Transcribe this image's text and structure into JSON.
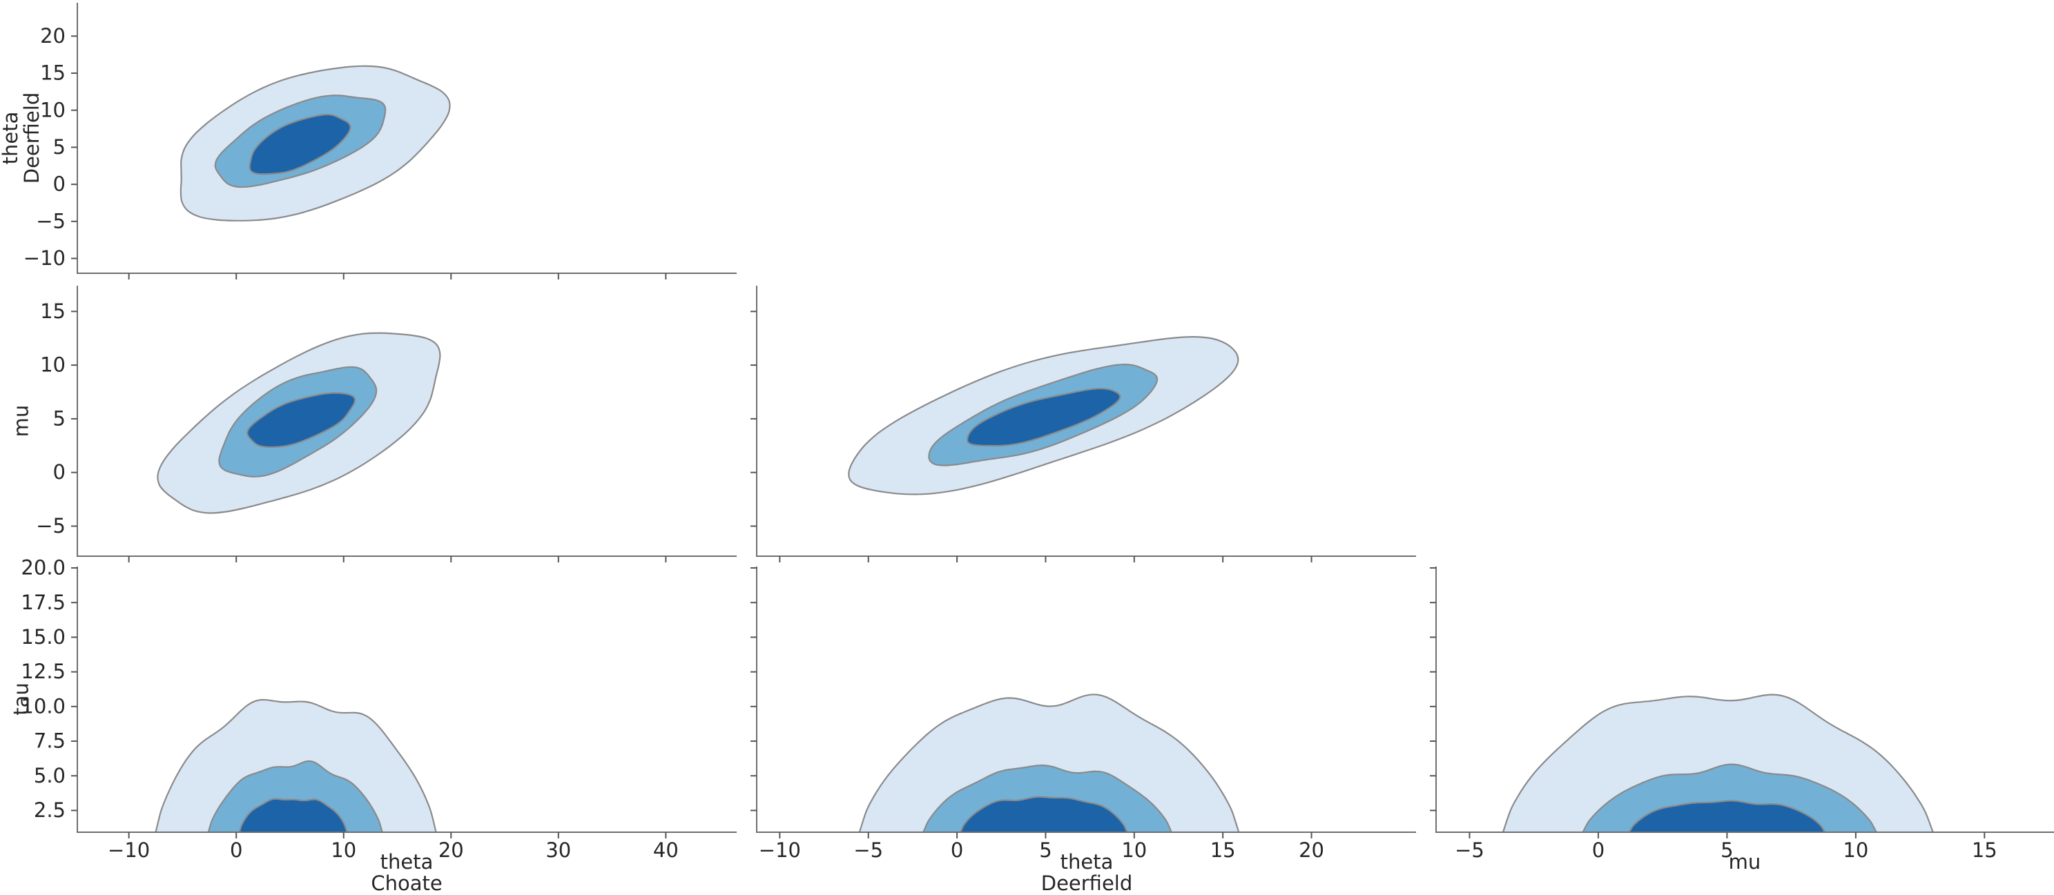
{
  "figure": {
    "background": "#ffffff",
    "text_color": "#262626",
    "spine_color": "#6e6e6e",
    "tick_color": "#555555"
  },
  "chart_data": {
    "type": "kde_pair_plot",
    "layout": "lower-triangular 3x3 grid of 2D KDE contour plots",
    "grid_on": false,
    "legend": null,
    "title": "",
    "contour_levels": {
      "fills": [
        "#d9e7f5",
        "#73b0d5",
        "#1c63a8"
      ],
      "stroke": "#8a8a8a",
      "order": [
        "outer",
        "middle",
        "inner"
      ]
    },
    "cols": [
      {
        "x_label_lines": [
          "theta",
          "Choate"
        ],
        "x_range": [
          -14.8,
          46.6
        ],
        "x_tick_values": [
          -10,
          0,
          10,
          20,
          30,
          40
        ],
        "x_tick_labels": [
          "−10",
          "0",
          "10",
          "20",
          "30",
          "40"
        ]
      },
      {
        "x_label_lines": [
          "theta",
          "Deerfield"
        ],
        "x_range": [
          -11.3,
          25.9
        ],
        "x_tick_values": [
          -10,
          -5,
          0,
          5,
          10,
          15,
          20
        ],
        "x_tick_labels": [
          "−10",
          "−5",
          "0",
          "5",
          "10",
          "15",
          "20"
        ]
      },
      {
        "x_label_lines": [
          "mu"
        ],
        "x_range": [
          -6.3,
          17.7
        ],
        "x_tick_values": [
          -5,
          0,
          5,
          10,
          15
        ],
        "x_tick_labels": [
          "−5",
          "0",
          "5",
          "10",
          "15"
        ]
      }
    ],
    "rows": [
      {
        "y_label_lines": [
          "theta",
          "Deerfield"
        ],
        "y_range": [
          -12.0,
          24.5
        ],
        "y_tick_values": [
          20,
          15,
          10,
          5,
          0,
          -5,
          -10
        ],
        "y_tick_labels": [
          "20",
          "15",
          "10",
          "5",
          "0",
          "−5",
          "−10"
        ]
      },
      {
        "y_label_lines": [
          "mu"
        ],
        "y_range": [
          -7.8,
          17.4
        ],
        "y_tick_values": [
          15,
          10,
          5,
          0,
          -5
        ],
        "y_tick_labels": [
          "15",
          "10",
          "5",
          "0",
          "−5"
        ]
      },
      {
        "y_label_lines": [
          "tau"
        ],
        "y_range": [
          0.93,
          20.1
        ],
        "y_tick_values": [
          20,
          17.5,
          15,
          12.5,
          10,
          7.5,
          5,
          2.5
        ],
        "y_tick_labels": [
          "20.0",
          "17.5",
          "15.0",
          "12.5",
          "10.0",
          "7.5",
          "5.0",
          "2.5"
        ]
      }
    ],
    "panels": [
      {
        "row": 0,
        "col": 0,
        "x_var": "theta Choate",
        "y_var": "theta Deerfield",
        "contours": [
          {
            "shape": "blob",
            "level": "outer",
            "center": [
              6.7,
              5.6
            ],
            "a": 14.0,
            "b": 8.3,
            "angle": 34,
            "wobble": 0.055,
            "seed": 11,
            "x_extent": [
              -6.5,
              20.0
            ],
            "y_extent": [
              -5.5,
              16.6
            ]
          },
          {
            "shape": "blob",
            "level": "middle",
            "center": [
              6.0,
              6.0
            ],
            "a": 9.0,
            "b": 4.3,
            "angle": 33,
            "wobble": 0.06,
            "seed": 22,
            "x_extent": [
              -2.5,
              14.5
            ],
            "y_extent": [
              0.3,
              12.0
            ]
          },
          {
            "shape": "blob",
            "level": "inner",
            "center": [
              5.8,
              5.4
            ],
            "a": 5.5,
            "b": 2.7,
            "angle": 38,
            "wobble": 0.05,
            "seed": 33,
            "x_extent": [
              1.0,
              10.5
            ],
            "y_extent": [
              1.3,
              9.5
            ]
          }
        ]
      },
      {
        "row": 1,
        "col": 0,
        "x_var": "theta Choate",
        "y_var": "mu",
        "contours": [
          {
            "shape": "blob",
            "level": "outer",
            "center": [
              6.3,
              4.6
            ],
            "a": 14.3,
            "b": 5.9,
            "angle": 27,
            "wobble": 0.055,
            "seed": 44,
            "x_extent": [
              -7.0,
              20.0
            ],
            "y_extent": [
              -3.7,
              12.7
            ]
          },
          {
            "shape": "blob",
            "level": "middle",
            "center": [
              5.6,
              4.8
            ],
            "a": 8.1,
            "b": 3.5,
            "angle": 30,
            "wobble": 0.06,
            "seed": 55,
            "x_extent": [
              -2.0,
              13.0
            ],
            "y_extent": [
              -0.7,
              10.2
            ]
          },
          {
            "shape": "blob",
            "level": "inner",
            "center": [
              6.0,
              4.9
            ],
            "a": 5.2,
            "b": 1.9,
            "angle": 20,
            "wobble": 0.05,
            "seed": 66,
            "x_extent": [
              1.0,
              11.0
            ],
            "y_extent": [
              2.2,
              7.6
            ]
          }
        ]
      },
      {
        "row": 1,
        "col": 1,
        "x_var": "theta Deerfield",
        "y_var": "mu",
        "contours": [
          {
            "shape": "blob",
            "level": "outer",
            "center": [
              4.7,
              5.4
            ],
            "a": 12.4,
            "b": 4.4,
            "angle": 30,
            "wobble": 0.05,
            "seed": 77,
            "x_extent": [
              -6.8,
              16.2
            ],
            "y_extent": [
              -1.6,
              12.5
            ]
          },
          {
            "shape": "blob",
            "level": "middle",
            "center": [
              5.0,
              5.3
            ],
            "a": 7.5,
            "b": 2.5,
            "angle": 33,
            "wobble": 0.06,
            "seed": 88,
            "x_extent": [
              -1.6,
              11.6
            ],
            "y_extent": [
              0.4,
              10.2
            ]
          },
          {
            "shape": "blob",
            "level": "inner",
            "center": [
              4.8,
              5.1
            ],
            "a": 4.8,
            "b": 1.6,
            "angle": 28,
            "wobble": 0.05,
            "seed": 99,
            "x_extent": [
              0.3,
              9.2
            ],
            "y_extent": [
              2.6,
              7.6
            ]
          }
        ]
      },
      {
        "row": 2,
        "col": 0,
        "x_var": "theta Choate",
        "y_var": "tau",
        "contours": [
          {
            "shape": "dome",
            "level": "outer",
            "x_min": -7.5,
            "x_max": 18.6,
            "top": 10.35,
            "wobble": 0.06,
            "flat": 2.4,
            "seed": 101
          },
          {
            "shape": "dome",
            "level": "middle",
            "x_min": -2.6,
            "x_max": 13.6,
            "top": 5.8,
            "wobble": 0.06,
            "flat": 2.4,
            "seed": 102
          },
          {
            "shape": "dome",
            "level": "inner",
            "x_min": 0.3,
            "x_max": 10.3,
            "top": 3.3,
            "wobble": 0.05,
            "flat": 3.2,
            "seed": 103
          }
        ]
      },
      {
        "row": 2,
        "col": 1,
        "x_var": "theta Deerfield",
        "y_var": "tau",
        "contours": [
          {
            "shape": "dome",
            "level": "outer",
            "x_min": -5.5,
            "x_max": 15.9,
            "top": 10.6,
            "wobble": 0.055,
            "flat": 2.4,
            "seed": 201
          },
          {
            "shape": "dome",
            "level": "middle",
            "x_min": -1.9,
            "x_max": 12.1,
            "top": 5.6,
            "wobble": 0.06,
            "flat": 2.4,
            "seed": 202
          },
          {
            "shape": "dome",
            "level": "inner",
            "x_min": 0.2,
            "x_max": 9.6,
            "top": 3.4,
            "wobble": 0.05,
            "flat": 3.2,
            "seed": 203
          }
        ]
      },
      {
        "row": 2,
        "col": 2,
        "x_var": "mu",
        "y_var": "tau",
        "contours": [
          {
            "shape": "dome",
            "level": "outer",
            "x_min": -3.7,
            "x_max": 13.0,
            "top": 10.8,
            "wobble": 0.055,
            "flat": 2.4,
            "seed": 301,
            "skew": 0.05
          },
          {
            "shape": "dome",
            "level": "middle",
            "x_min": -0.6,
            "x_max": 10.8,
            "top": 5.5,
            "wobble": 0.06,
            "flat": 2.4,
            "seed": 302
          },
          {
            "shape": "dome",
            "level": "inner",
            "x_min": 1.2,
            "x_max": 8.8,
            "top": 3.1,
            "wobble": 0.05,
            "flat": 3.2,
            "seed": 303
          }
        ]
      }
    ]
  }
}
